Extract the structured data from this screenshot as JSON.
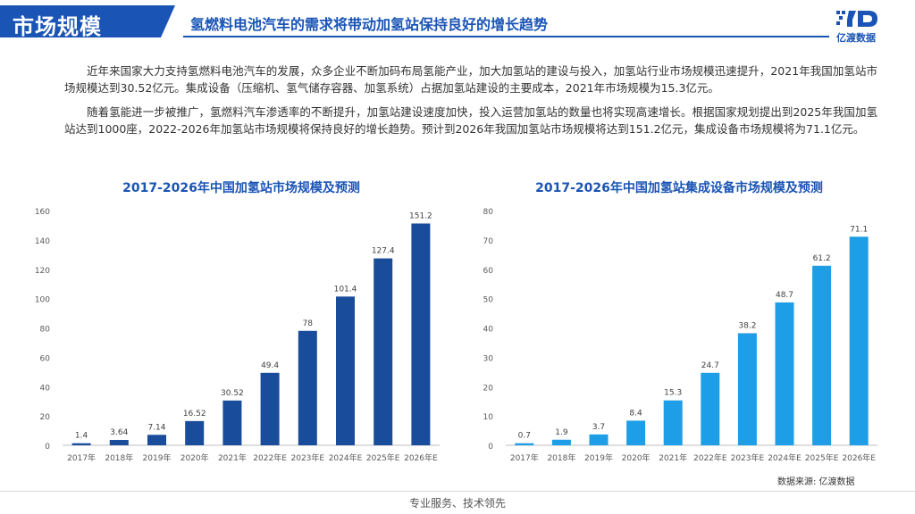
{
  "header": {
    "section_title": "市场规模",
    "subtitle": "氢燃料电池汽车的需求将带动加氢站保持良好的增长趋势",
    "logo_text": "亿渡数据"
  },
  "body": {
    "para1": "近年来国家大力支持氢燃料电池汽车的发展，众多企业不断加码布局氢能产业，加大加氢站的建设与投入，加氢站行业市场规模迅速提升，2021年我国加氢站市场规模达到30.52亿元。集成设备（压缩机、氢气储存容器、加氢系统）占据加氢站建设的主要成本，2021年市场规模为15.3亿元。",
    "para2": "随着氢能进一步被推广，氢燃料汽车渗透率的不断提升，加氢站建设速度加快，投入运营加氢站的数量也将实现高速增长。根据国家规划提出到2025年我国加氢站达到1000座，2022-2026年加氢站市场规模将保持良好的增长趋势。预计到2026年我国加氢站市场规模将达到151.2亿元，集成设备市场规模将为71.1亿元。"
  },
  "chart_data": [
    {
      "type": "bar",
      "title": "2017-2026年中国加氢站市场规模及预测",
      "categories": [
        "2017年",
        "2018年",
        "2019年",
        "2020年",
        "2021年",
        "2022年E",
        "2023年E",
        "2024年E",
        "2025年E",
        "2026年E"
      ],
      "values": [
        1.4,
        3.64,
        7.14,
        16.52,
        30.52,
        49.4,
        78,
        101.4,
        127.4,
        151.2
      ],
      "value_labels": [
        "1.4",
        "3.64",
        "7.14",
        "16.52",
        "30.52",
        "49.4",
        "78",
        "101.4",
        "127.4",
        "151.2"
      ],
      "ylim": [
        0,
        160
      ],
      "yticks": [
        0,
        20,
        40,
        60,
        80,
        100,
        120,
        140,
        160
      ],
      "color": "#1a4c9c",
      "grid": false
    },
    {
      "type": "bar",
      "title": "2017-2026年中国加氢站集成设备市场规模及预测",
      "categories": [
        "2017年",
        "2018年",
        "2019年",
        "2020年",
        "2021年",
        "2022年E",
        "2023年E",
        "2024年E",
        "2025年E",
        "2026年E"
      ],
      "values": [
        0.7,
        1.9,
        3.7,
        8.4,
        15.3,
        24.7,
        38.2,
        48.7,
        61.2,
        71.1
      ],
      "value_labels": [
        "0.7",
        "1.9",
        "3.7",
        "8.4",
        "15.3",
        "24.7",
        "38.2",
        "48.7",
        "61.2",
        "71.1"
      ],
      "ylim": [
        0,
        80
      ],
      "yticks": [
        0,
        10,
        20,
        30,
        40,
        50,
        60,
        70,
        80
      ],
      "color": "#1e9ee6",
      "grid": false
    }
  ],
  "source": "数据来源: 亿渡数据",
  "footer": "专业服务、技术领先"
}
